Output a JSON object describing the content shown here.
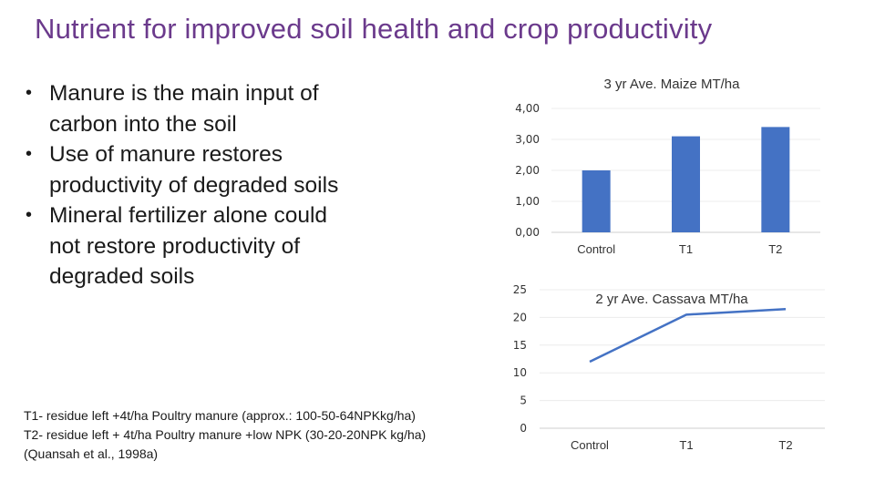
{
  "slide": {
    "title": "Nutrient for improved soil health and crop productivity"
  },
  "bullets": [
    "Manure is the main input of carbon into the soil",
    "Use of manure restores productivity of degraded soils",
    "Mineral fertilizer alone could not restore productivity of degraded soils"
  ],
  "bullet_glyph": "•",
  "footnote": {
    "line1": "T1- residue left +4t/ha Poultry manure (approx.: 100-50-64NPKkg/ha)",
    "line2": "T2- residue left + 4t/ha Poultry manure +low NPK (30-20-20NPK kg/ha)",
    "line3": "(Quansah et al., 1998a)"
  },
  "chart_data": [
    {
      "type": "bar",
      "title": "3 yr Ave. Maize MT/ha",
      "categories": [
        "Control",
        "T1",
        "T2"
      ],
      "values": [
        2.0,
        3.1,
        3.4
      ],
      "ylim": [
        0,
        4
      ],
      "ytick_labels": [
        "0,00",
        "1,00",
        "2,00",
        "3,00",
        "4,00"
      ],
      "grid": true,
      "color": "#4472c4"
    },
    {
      "type": "line",
      "title": "2 yr Ave. Cassava MT/ha",
      "categories": [
        "Control",
        "T1",
        "T2"
      ],
      "values": [
        12.0,
        20.5,
        21.5
      ],
      "ylim": [
        0,
        25
      ],
      "ytick_labels": [
        "0",
        "5",
        "10",
        "15",
        "20",
        "25"
      ],
      "grid": true,
      "color": "#4472c4"
    }
  ]
}
